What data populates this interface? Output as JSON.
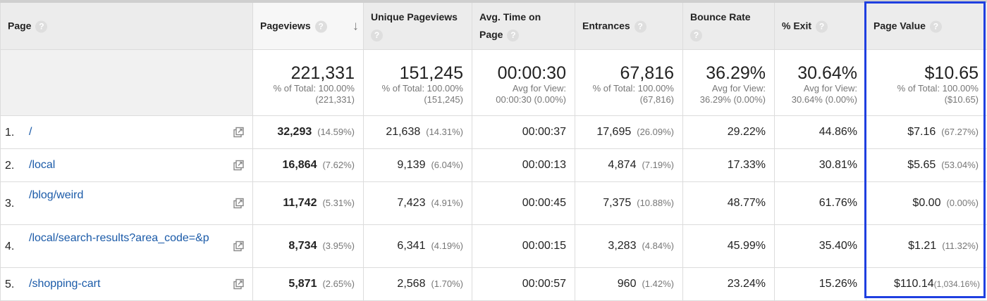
{
  "columns": {
    "page": "Page",
    "pageviews": "Pageviews",
    "unique_pageviews": "Unique Pageviews",
    "avg_time_l1": "Avg. Time on",
    "avg_time_l2": "Page",
    "entrances": "Entrances",
    "bounce_rate": "Bounce Rate",
    "exit": "% Exit",
    "page_value": "Page Value",
    "help_glyph": "?",
    "sort_glyph": "↓"
  },
  "totals": {
    "pageviews": {
      "big": "221,331",
      "s1": "% of Total: 100.00%",
      "s2": "(221,331)"
    },
    "unique_pageviews": {
      "big": "151,245",
      "s1": "% of Total: 100.00%",
      "s2": "(151,245)"
    },
    "avg_time": {
      "big": "00:00:30",
      "s1": "Avg for View:",
      "s2": "00:00:30 (0.00%)"
    },
    "entrances": {
      "big": "67,816",
      "s1": "% of Total: 100.00%",
      "s2": "(67,816)"
    },
    "bounce_rate": {
      "big": "36.29%",
      "s1": "Avg for View:",
      "s2": "36.29% (0.00%)"
    },
    "exit": {
      "big": "30.64%",
      "s1": "Avg for View:",
      "s2": "30.64% (0.00%)"
    },
    "page_value": {
      "big": "$10.65",
      "s1": "% of Total: 100.00%",
      "s2": "($10.65)"
    }
  },
  "rows": [
    {
      "idx": "1.",
      "page": "/",
      "pv": "32,293",
      "pv_pct": "(14.59%)",
      "upv": "21,638",
      "upv_pct": "(14.31%)",
      "time": "00:00:37",
      "ent": "17,695",
      "ent_pct": "(26.09%)",
      "bounce": "29.22%",
      "exit": "44.86%",
      "val": "$7.16",
      "val_pct": "(67.27%)"
    },
    {
      "idx": "2.",
      "page": "/local",
      "pv": "16,864",
      "pv_pct": "(7.62%)",
      "upv": "9,139",
      "upv_pct": "(6.04%)",
      "time": "00:00:13",
      "ent": "4,874",
      "ent_pct": "(7.19%)",
      "bounce": "17.33%",
      "exit": "30.81%",
      "val": "$5.65",
      "val_pct": "(53.04%)"
    },
    {
      "idx": "3.",
      "page": "/blog/weird",
      "pv": "11,742",
      "pv_pct": "(5.31%)",
      "upv": "7,423",
      "upv_pct": "(4.91%)",
      "time": "00:00:45",
      "ent": "7,375",
      "ent_pct": "(10.88%)",
      "bounce": "48.77%",
      "exit": "61.76%",
      "val": "$0.00",
      "val_pct": "(0.00%)"
    },
    {
      "idx": "4.",
      "page": "/local/search-results?area_code=&p",
      "pv": "8,734",
      "pv_pct": "(3.95%)",
      "upv": "6,341",
      "upv_pct": "(4.19%)",
      "time": "00:00:15",
      "ent": "3,283",
      "ent_pct": "(4.84%)",
      "bounce": "45.99%",
      "exit": "35.40%",
      "val": "$1.21",
      "val_pct": "(11.32%)"
    },
    {
      "idx": "5.",
      "page": "/shopping-cart",
      "pv": "5,871",
      "pv_pct": "(2.65%)",
      "upv": "2,568",
      "upv_pct": "(1.70%)",
      "time": "00:00:57",
      "ent": "960",
      "ent_pct": "(1.42%)",
      "bounce": "23.24%",
      "exit": "15.26%",
      "val": "$110.14",
      "val_pct": "(1,034.16%)"
    }
  ],
  "icons": {
    "external": "open-in-new-window-icon",
    "help": "help-circle-icon",
    "sort": "sort-descending-icon"
  },
  "colors": {
    "link": "#1a5aa8",
    "highlight": "#1f3fe0",
    "header_bg": "#ececec"
  }
}
